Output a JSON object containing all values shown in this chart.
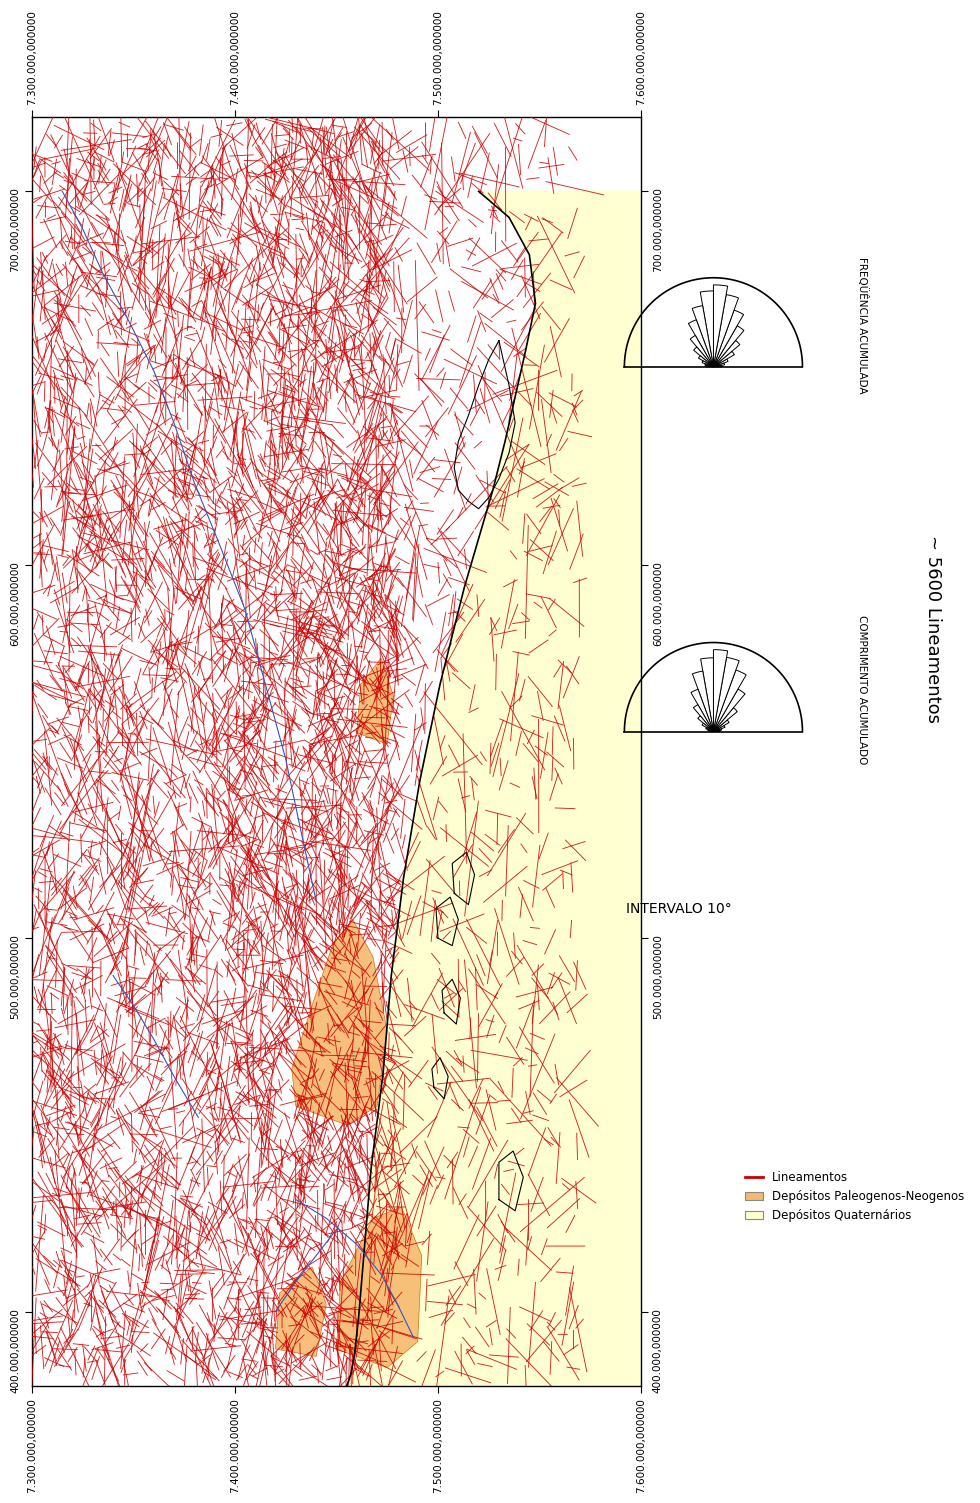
{
  "xlim": [
    7300000,
    7600000
  ],
  "ylim": [
    380000,
    720000
  ],
  "xticks": [
    7300000,
    7400000,
    7500000,
    7600000
  ],
  "yticks": [
    400000,
    500000,
    600000,
    700000
  ],
  "background_color": "#ffffff",
  "lineament_color": "#cc0000",
  "quaternary_color": "#ffffcc",
  "paleogene_color": "#f5b96e",
  "coast_color": "#000000",
  "river_color": "#3355bb",
  "legend_items": [
    "Lineamentos",
    "Depósitos Paleogenos-Neogenos",
    "Depósitos Quaternários"
  ],
  "legend_colors": [
    "#cc0000",
    "#f5b96e",
    "#ffffcc"
  ],
  "annotations": [
    "INTERVALO 10°",
    "~ 5600 Lineamentos"
  ],
  "rose_labels": [
    "FREQÜÊNCIA ACUMULADA",
    "COMPRIMENTO ACUMULADO"
  ],
  "freq_rose": [
    0.1,
    0.13,
    0.18,
    0.28,
    0.4,
    0.55,
    0.7,
    0.85,
    0.95,
    0.88,
    0.72,
    0.58,
    0.42,
    0.3,
    0.2,
    0.14,
    0.1,
    0.08
  ],
  "len_rose": [
    0.08,
    0.1,
    0.15,
    0.22,
    0.38,
    0.6,
    0.8,
    0.92,
    1.0,
    0.9,
    0.75,
    0.55,
    0.38,
    0.25,
    0.16,
    0.1,
    0.07,
    0.05
  ]
}
